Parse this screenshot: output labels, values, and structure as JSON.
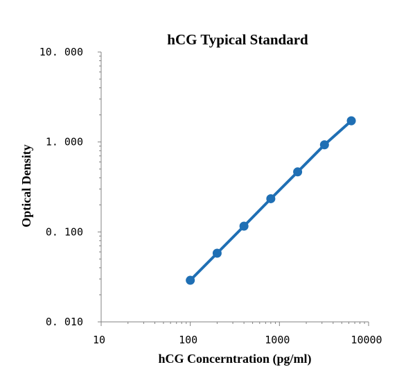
{
  "chart_data": {
    "type": "line",
    "title": "hCG Typical Standard",
    "xlabel": "hCG Concerntration (pg/ml)",
    "ylabel": "Optical Density",
    "x_scale": "log",
    "y_scale": "log",
    "xlim": [
      10,
      10000
    ],
    "ylim": [
      0.01,
      10
    ],
    "x_ticks": [
      10,
      100,
      1000,
      10000
    ],
    "x_tick_labels": [
      "10",
      "100",
      "1000",
      "10000"
    ],
    "y_ticks": [
      0.01,
      0.1,
      1,
      10
    ],
    "y_tick_labels": [
      "0. 010",
      "0. 100",
      "1. 000",
      "10. 000"
    ],
    "grid": false,
    "legend": "none",
    "series": [
      {
        "color": "#1f6fb4",
        "x": [
          100,
          200,
          400,
          800,
          1600,
          3200,
          6400
        ],
        "y": [
          0.029,
          0.058,
          0.116,
          0.234,
          0.465,
          0.93,
          1.72
        ]
      }
    ]
  }
}
